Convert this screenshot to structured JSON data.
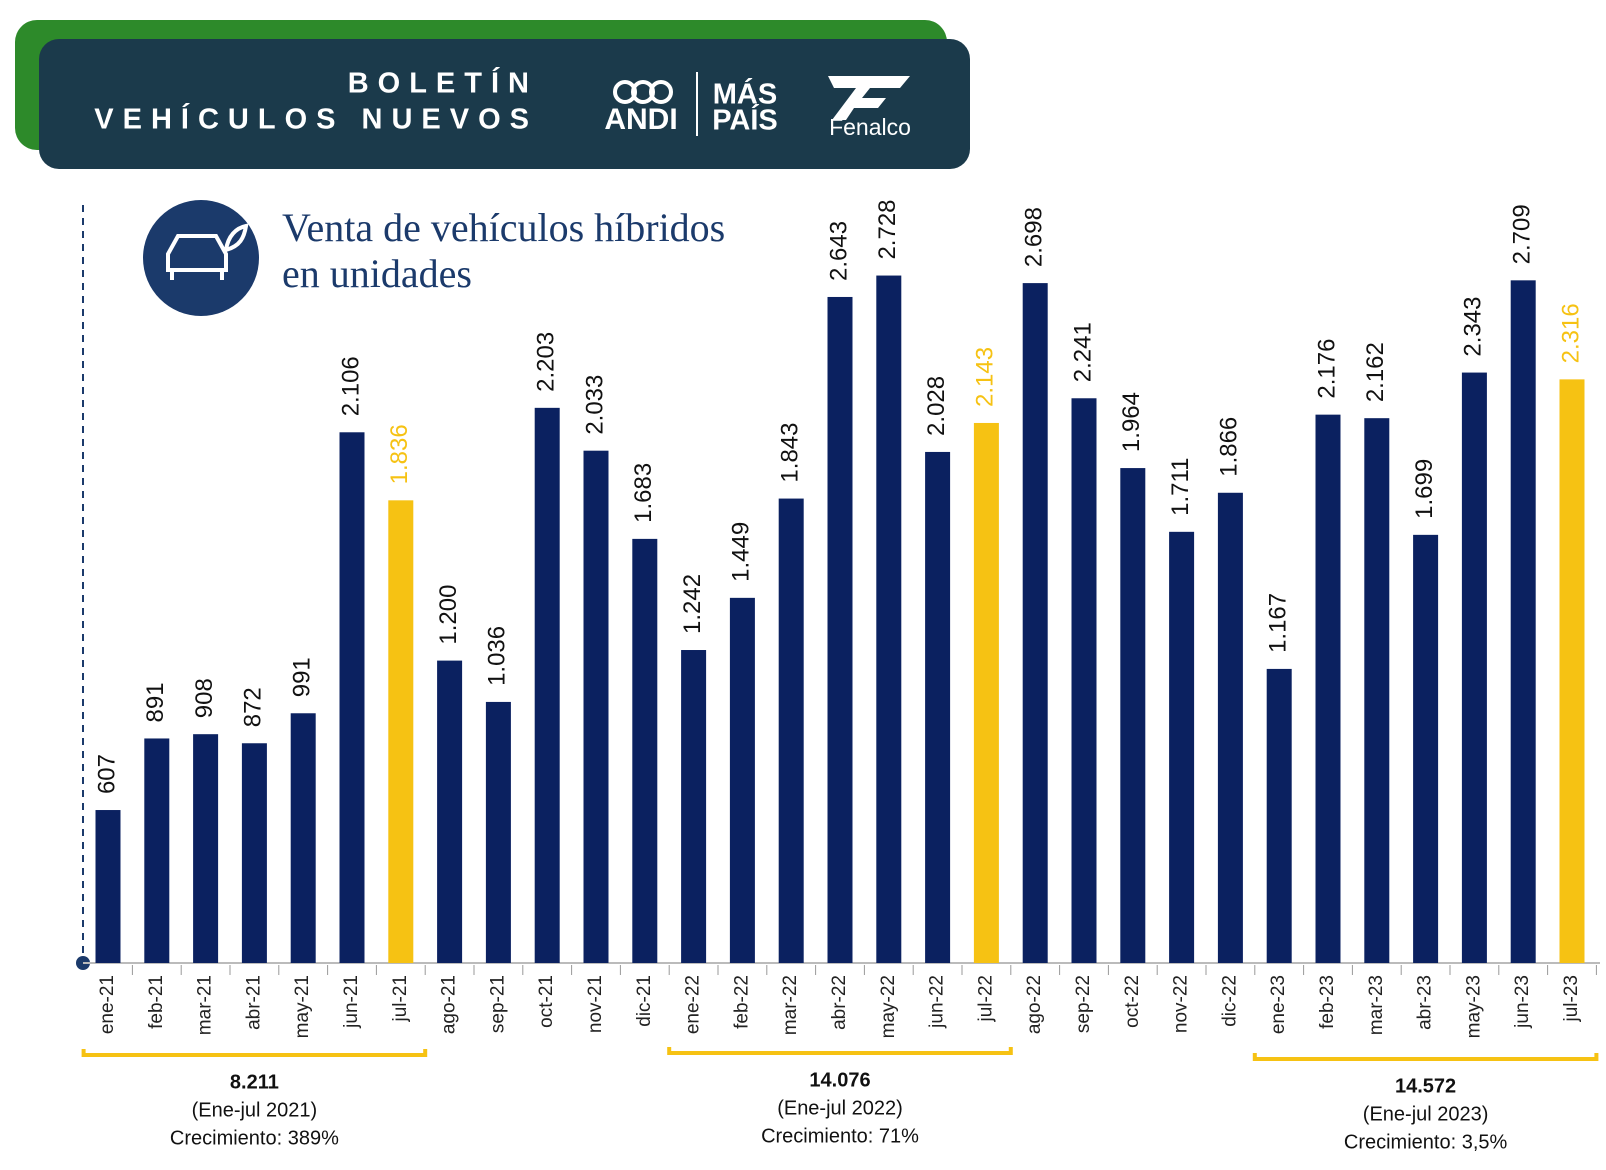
{
  "header": {
    "title_line1": "BOLETÍN",
    "title_line2": "VEHÍCULOS NUEVOS",
    "logo1": "ANDI",
    "logo2_line1": "MÁS",
    "logo2_line2": "PAÍS",
    "logo3": "Fenalco"
  },
  "chart_data": {
    "type": "bar",
    "title_line1": "Venta de vehículos híbridos",
    "title_line2": "en unidades",
    "categories": [
      "ene-21",
      "feb-21",
      "mar-21",
      "abr-21",
      "may-21",
      "jun-21",
      "jul-21",
      "ago-21",
      "sep-21",
      "oct-21",
      "nov-21",
      "dic-21",
      "ene-22",
      "feb-22",
      "mar-22",
      "abr-22",
      "may-22",
      "jun-22",
      "jul-22",
      "ago-22",
      "sep-22",
      "oct-22",
      "nov-22",
      "dic-22",
      "ene-23",
      "feb-23",
      "mar-23",
      "abr-23",
      "may-23",
      "jun-23",
      "jul-23"
    ],
    "values": [
      607,
      891,
      908,
      872,
      991,
      2106,
      1836,
      1200,
      1036,
      2203,
      2033,
      1683,
      1242,
      1449,
      1843,
      2643,
      2728,
      2028,
      2143,
      2698,
      2241,
      1964,
      1711,
      1866,
      1167,
      2176,
      2162,
      1699,
      2343,
      2709,
      2316
    ],
    "value_labels": [
      "607",
      "891",
      "908",
      "872",
      "991",
      "2.106",
      "1.836",
      "1.200",
      "1.036",
      "2.203",
      "2.033",
      "1.683",
      "1.242",
      "1.449",
      "1.843",
      "2.643",
      "2.728",
      "2.028",
      "2.143",
      "2.698",
      "2.241",
      "1.964",
      "1.711",
      "1.866",
      "1.167",
      "2.176",
      "2.162",
      "1.699",
      "2.343",
      "2.709",
      "2.316"
    ],
    "colors": [
      "#0b2160",
      "#0b2160",
      "#0b2160",
      "#0b2160",
      "#0b2160",
      "#0b2160",
      "#f6c213",
      "#0b2160",
      "#0b2160",
      "#0b2160",
      "#0b2160",
      "#0b2160",
      "#0b2160",
      "#0b2160",
      "#0b2160",
      "#0b2160",
      "#0b2160",
      "#0b2160",
      "#f6c213",
      "#0b2160",
      "#0b2160",
      "#0b2160",
      "#0b2160",
      "#0b2160",
      "#0b2160",
      "#0b2160",
      "#0b2160",
      "#0b2160",
      "#0b2160",
      "#0b2160",
      "#f6c213"
    ],
    "annotations": [
      {
        "total": "8.211",
        "period": "(Ene-jul 2021)",
        "growth": "Crecimiento: 389%"
      },
      {
        "total": "14.076",
        "period": "(Ene-jul 2022)",
        "growth": "Crecimiento: 71%"
      },
      {
        "total": "14.572",
        "period": "(Ene-jul 2023)",
        "growth": "Crecimiento: 3,5%"
      }
    ]
  }
}
